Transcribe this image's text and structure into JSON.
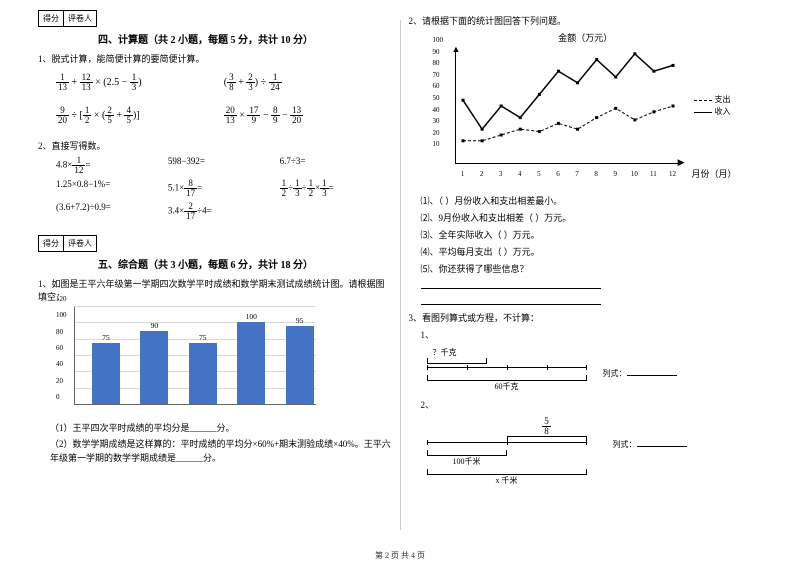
{
  "score_labels": {
    "score": "得分",
    "grader": "评卷人"
  },
  "section4": {
    "title": "四、计算题（共 2 小题，每题 5 分，共计 10 分）",
    "q1": "1、脱式计算，能简便计算的要简便计算。",
    "q2": "2、直接写得数。",
    "formulas_a": [
      "1/13 + 12/13 × (2.5 − 1/3)",
      "(3/8 + 2/3) ÷ 1/24"
    ],
    "formulas_b": [
      "9/20 ÷ [1/2 × (2/5 + 4/5)]",
      "20/13 × 17/9 − 8/9 − 13/20"
    ],
    "mini": [
      [
        "4.8×1/12=",
        "598−392=",
        "6.7÷3="
      ],
      [
        "1.25×0.8−1%=",
        "5.1×8/17=",
        "1/2÷1/3÷1/2×1/3="
      ],
      [
        "(3.6+7.2)÷0.9=",
        "3.4×2/17÷4=",
        ""
      ]
    ]
  },
  "section5": {
    "title": "五、综合题（共 3 小题，每题 6 分，共计 18 分）",
    "q1_intro": "1、如图是王平六年级第一学期四次数学平时成绩和数学期末测试成绩统计图。请根据图填空：",
    "q1_a": "（1）王平四次平时成绩的平均分是______分。",
    "q1_b": "（2）数学学期成绩是这样算的：平时成绩的平均分×60%+期末测验成绩×40%。王平六年级第一学期的数学学期成绩是______分。",
    "bar": {
      "values": [
        75,
        90,
        75,
        100,
        95
      ],
      "ymax": 120,
      "ystep": 20,
      "color": "#4472c4",
      "grid_color": "#d9d9d9",
      "label_fontsize": 7.5
    }
  },
  "right": {
    "q2_intro": "2、请根据下面的统计图回答下列问题。",
    "chart_title": "金额（万元）",
    "month_axis": "月份（月）",
    "legend": {
      "expense": "支出",
      "income": "收入"
    },
    "line": {
      "months": [
        1,
        2,
        3,
        4,
        5,
        6,
        7,
        8,
        9,
        10,
        11,
        12
      ],
      "yticks": [
        10,
        20,
        30,
        40,
        50,
        60,
        70,
        80,
        90,
        100
      ],
      "income": [
        55,
        30,
        50,
        40,
        60,
        80,
        70,
        90,
        75,
        95,
        80,
        85
      ],
      "expense": [
        20,
        20,
        25,
        30,
        28,
        35,
        30,
        40,
        48,
        38,
        45,
        50
      ]
    },
    "subs": [
      "⑴、（    ）月份收入和支出相差最小。",
      "⑵、9月份收入和支出相差（    ）万元。",
      "⑶、全年实际收入（    ）万元。",
      "⑷、平均每月支出（    ）万元。",
      "⑸、你还获得了哪些信息？"
    ],
    "q3_intro": "3、看图列算式或方程，不计算：",
    "diag1": {
      "part": "？千克",
      "total": "60千克",
      "label": "列式："
    },
    "diag2": {
      "frac": "5/8",
      "total": "100千米",
      "x": "x 千米",
      "label": "列式："
    }
  },
  "footer": "第 2 页 共 4 页"
}
